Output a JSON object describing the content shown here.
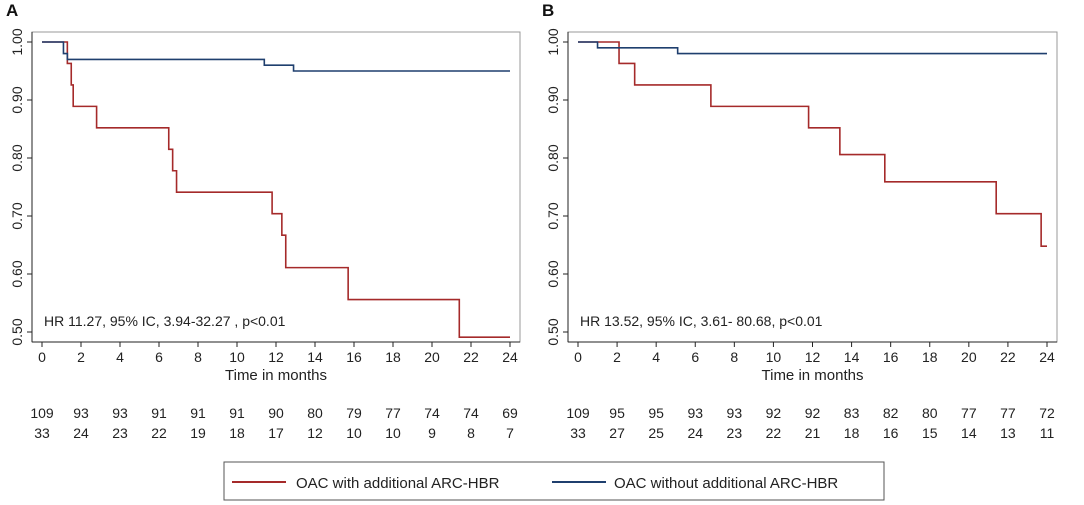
{
  "chart_data": [
    {
      "type": "line",
      "panel_label": "A",
      "xlabel": "Time in months",
      "ylabel": "",
      "xlim": [
        0,
        24
      ],
      "ylim": [
        0.5,
        1.0
      ],
      "x_ticks": [
        "0",
        "2",
        "4",
        "6",
        "8",
        "10",
        "12",
        "14",
        "16",
        "18",
        "20",
        "22",
        "24"
      ],
      "y_ticks": [
        "0.50",
        "0.60",
        "0.70",
        "0.80",
        "0.90",
        "1.00"
      ],
      "annotation": "HR 11.27, 95% IC, 3.94-32.27 , p<0.01",
      "series": [
        {
          "name": "OAC with additional ARC-HBR",
          "color": "#a52a2a",
          "step_points": [
            [
              0,
              1.0
            ],
            [
              1.3,
              1.0
            ],
            [
              1.3,
              0.963
            ],
            [
              1.5,
              0.926
            ],
            [
              1.6,
              0.889
            ],
            [
              2.8,
              0.852
            ],
            [
              6.5,
              0.815
            ],
            [
              6.7,
              0.778
            ],
            [
              6.9,
              0.741
            ],
            [
              11.8,
              0.704
            ],
            [
              12.3,
              0.667
            ],
            [
              12.5,
              0.611
            ],
            [
              15.7,
              0.556
            ],
            [
              21.4,
              0.491
            ],
            [
              24,
              0.491
            ]
          ]
        },
        {
          "name": "OAC without additional ARC-HBR",
          "color": "#1f3f6e",
          "step_points": [
            [
              0,
              1.0
            ],
            [
              1.1,
              1.0
            ],
            [
              1.1,
              0.98
            ],
            [
              1.3,
              0.97
            ],
            [
              11.4,
              0.96
            ],
            [
              12.9,
              0.95
            ],
            [
              24,
              0.95
            ]
          ]
        }
      ],
      "risk_table": {
        "times": [
          0,
          2,
          4,
          6,
          8,
          10,
          12,
          14,
          16,
          18,
          20,
          22,
          24
        ],
        "rows": [
          [
            "109",
            "93",
            "93",
            "91",
            "91",
            "91",
            "90",
            "80",
            "79",
            "77",
            "74",
            "74",
            "69"
          ],
          [
            "33",
            "24",
            "23",
            "22",
            "19",
            "18",
            "17",
            "12",
            "10",
            "10",
            "9",
            "8",
            "7"
          ]
        ]
      }
    },
    {
      "type": "line",
      "panel_label": "B",
      "xlabel": "Time in months",
      "ylabel": "",
      "xlim": [
        0,
        24
      ],
      "ylim": [
        0.5,
        1.0
      ],
      "x_ticks": [
        "0",
        "2",
        "4",
        "6",
        "8",
        "10",
        "12",
        "14",
        "16",
        "18",
        "20",
        "22",
        "24"
      ],
      "y_ticks": [
        "0.50",
        "0.60",
        "0.70",
        "0.80",
        "0.90",
        "1.00"
      ],
      "annotation": "HR 13.52, 95% IC, 3.61- 80.68, p<0.01",
      "series": [
        {
          "name": "OAC with additional ARC-HBR",
          "color": "#a52a2a",
          "step_points": [
            [
              0,
              1.0
            ],
            [
              2.1,
              1.0
            ],
            [
              2.1,
              0.963
            ],
            [
              2.9,
              0.926
            ],
            [
              6.8,
              0.889
            ],
            [
              11.8,
              0.852
            ],
            [
              13.4,
              0.806
            ],
            [
              15.7,
              0.759
            ],
            [
              21.4,
              0.704
            ],
            [
              23.7,
              0.648
            ],
            [
              24,
              0.648
            ]
          ]
        },
        {
          "name": "OAC without additional ARC-HBR",
          "color": "#1f3f6e",
          "step_points": [
            [
              0,
              1.0
            ],
            [
              1.0,
              1.0
            ],
            [
              1.0,
              0.99
            ],
            [
              5.1,
              0.98
            ],
            [
              24,
              0.98
            ]
          ]
        }
      ],
      "risk_table": {
        "times": [
          0,
          2,
          4,
          6,
          8,
          10,
          12,
          14,
          16,
          18,
          20,
          22,
          24
        ],
        "rows": [
          [
            "109",
            "95",
            "95",
            "93",
            "93",
            "92",
            "92",
            "83",
            "82",
            "80",
            "77",
            "77",
            "72"
          ],
          [
            "33",
            "27",
            "25",
            "24",
            "23",
            "22",
            "21",
            "18",
            "16",
            "15",
            "14",
            "13",
            "11"
          ]
        ]
      }
    }
  ],
  "legend": {
    "items": [
      {
        "label": "OAC with additional ARC-HBR",
        "color": "#a52a2a"
      },
      {
        "label": "OAC without additional ARC-HBR",
        "color": "#1f3f6e"
      }
    ]
  }
}
